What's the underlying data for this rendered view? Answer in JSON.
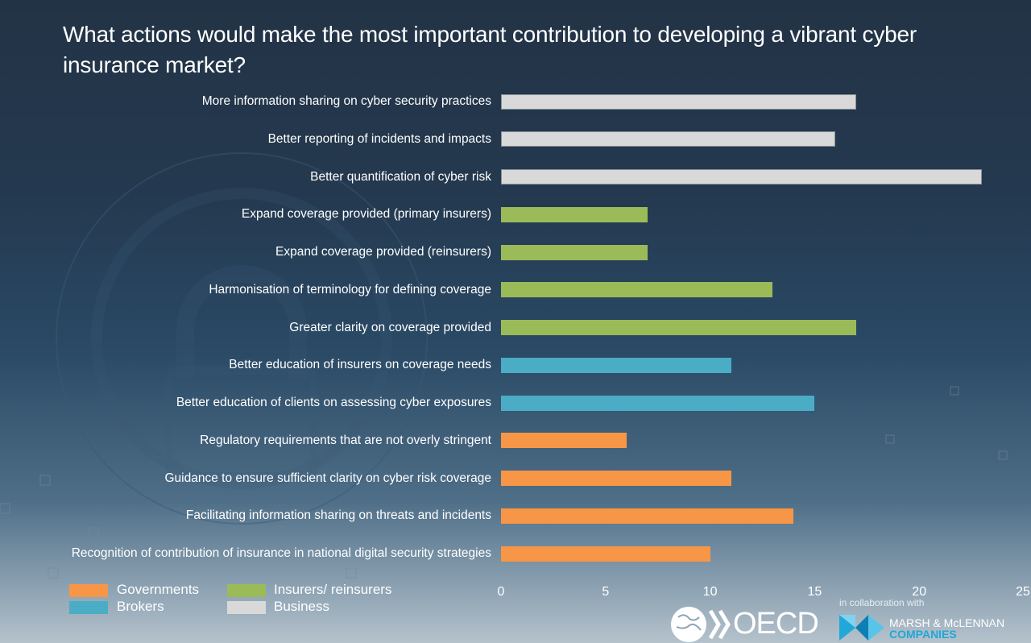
{
  "chart_data": {
    "type": "bar",
    "orientation": "horizontal",
    "title": "What actions would make the most important contribution to developing a vibrant cyber insurance market?",
    "xlabel": "",
    "ylabel": "",
    "xlim": [
      0,
      25
    ],
    "x_ticks": [
      "0",
      "5",
      "10",
      "15",
      "20",
      "25"
    ],
    "grid": false,
    "legend_position": "bottom-left",
    "categories": [
      "More information sharing on cyber security practices",
      "Better reporting of incidents and impacts",
      "Better quantification of cyber risk",
      "Expand coverage provided (primary insurers)",
      "Expand coverage provided (reinsurers)",
      "Harmonisation of terminology for defining coverage",
      "Greater clarity on coverage provided",
      "Better education of insurers on coverage needs",
      "Better education of clients on assessing cyber exposures",
      "Regulatory requirements that are not overly stringent",
      "Guidance to ensure sufficient clarity on cyber risk coverage",
      "Facilitating information sharing on threats and incidents",
      "Recognition of contribution of insurance in national digital security strategies"
    ],
    "values": [
      17,
      16,
      23,
      7,
      7,
      13,
      17,
      11,
      15,
      6,
      11,
      14,
      10
    ],
    "groups": [
      "Business",
      "Business",
      "Business",
      "Insurers/ reinsurers",
      "Insurers/ reinsurers",
      "Insurers/ reinsurers",
      "Insurers/ reinsurers",
      "Brokers",
      "Brokers",
      "Governments",
      "Governments",
      "Governments",
      "Governments"
    ],
    "legend": [
      {
        "name": "Governments",
        "color": "#f79646"
      },
      {
        "name": "Insurers/ reinsurers",
        "color": "#9bbb59"
      },
      {
        "name": "Brokers",
        "color": "#4bacc6"
      },
      {
        "name": "Business",
        "color": "#d9d9d9"
      }
    ]
  },
  "footer": {
    "collab_text": "in collaboration with",
    "oecd_logo_text": "OECD",
    "mmc_line1": "MARSH & McLENNAN",
    "mmc_line2": "COMPANIES"
  }
}
